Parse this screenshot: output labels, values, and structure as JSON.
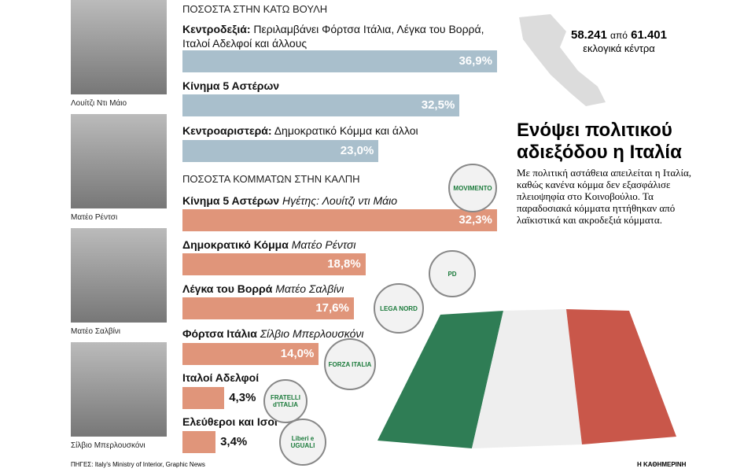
{
  "chart_data": [
    {
      "type": "bar",
      "orientation": "horizontal",
      "subtitle": "ΠΟΣΟΣΤΑ ΣΤΗΝ ΚΑΤΩ ΒΟΥΛΗ",
      "categories": [
        "Κεντροδεξιά:",
        "Κίνημα 5 Αστέρων",
        "Κεντροαριστερά:"
      ],
      "category_notes": [
        "Περιλαμβάνει Φόρτσα Ιτάλια, Λέγκα του Βορρά, Ιταλοί Αδελφοί και άλλους",
        null,
        "Δημοκρατικό Κόμμα και άλλοι"
      ],
      "values": [
        36.9,
        32.5,
        23.0
      ],
      "value_labels": [
        "36,9%",
        "32,5%",
        "23,0%"
      ],
      "color": "#a9bfcc"
    },
    {
      "type": "bar",
      "orientation": "horizontal",
      "subtitle": "ΠΟΣΟΣΤΑ ΚΟΜΜΑΤΩΝ ΣΤΗΝ ΚΑΛΠΗ",
      "categories": [
        "Κίνημα 5 Αστέρων",
        "Δημοκρατικό Κόμμα",
        "Λέγκα του Βορρά",
        "Φόρτσα Ιτάλια",
        "Ιταλοί Αδελφοί",
        "Ελεύθεροι και Ισοι"
      ],
      "category_notes": [
        "Ηγέτης: Λουίτζι ντι Μάιο",
        "Ματέο Ρέντσι",
        "Ματέο Σαλβίνι",
        "Σίλβιο Μπερλουσκόνι",
        null,
        null
      ],
      "values": [
        32.3,
        18.8,
        17.6,
        14.0,
        4.3,
        3.4
      ],
      "value_labels": [
        "32,3%",
        "18,8%",
        "17,6%",
        "14,0%",
        "4,3%",
        "3,4%"
      ],
      "color": "#e0957a"
    }
  ],
  "photos": [
    "Λουίτζι Ντι Μάιο",
    "Ματέο Ρέντσι",
    "Ματέο Σαλβίνι",
    "Σίλβιο Μπερλουσκόνι"
  ],
  "stations": {
    "counted": "58.241",
    "of": "από",
    "total": "61.401",
    "label": "εκλογικά κέντρα"
  },
  "headline": "Ενόψει πολιτικού αδιεξόδου η Ιταλία",
  "text": "Με πολιτική αστάθεια απειλείται η Ιταλία, καθώς κανένα κόμμα δεν εξασφάλισε πλειοψηφία στο Κοινοβούλιο. Τα παραδοσιακά κόμματα ηττήθηκαν από λαϊκιστικά και ακροδεξιά κόμματα.",
  "logos": [
    "MOVIMENTO",
    "PD",
    "LEGA NORD",
    "FORZA ITALIA",
    "FRATELLI d'ITALIA",
    "Liberi e UGUALI"
  ],
  "source": "ΠΗΓΕΣ: Italy's Ministry of Interior, Graphic News",
  "credit": "Η ΚΑΘΗΜΕΡΙΝΗ"
}
